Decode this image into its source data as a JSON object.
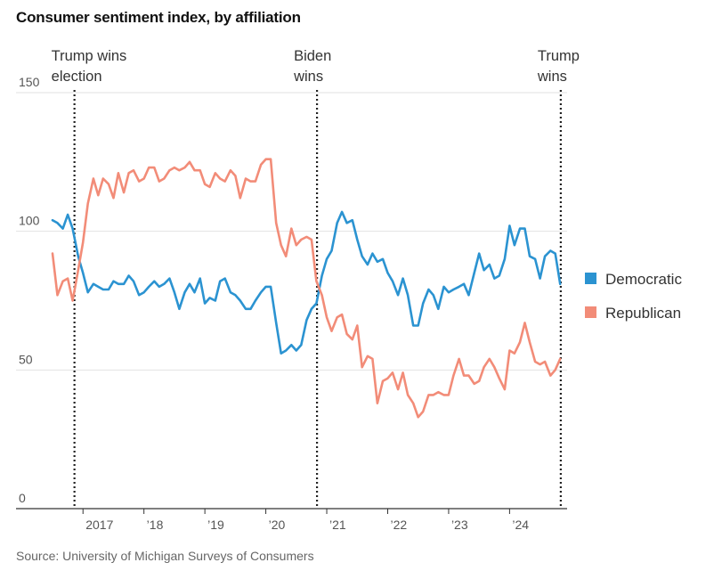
{
  "title": "Consumer sentiment index, by affiliation",
  "source": "Source: University of Michigan Surveys of Consumers",
  "chart_data": {
    "type": "line",
    "title": "Consumer sentiment index, by affiliation",
    "ylim": [
      0,
      150
    ],
    "yticks": [
      0,
      50,
      100,
      150
    ],
    "ytick_labels": [
      "0",
      "50",
      "100",
      "150"
    ],
    "xlim": [
      2016.5,
      2024.9
    ],
    "xticks": [
      2017,
      2018,
      2019,
      2020,
      2021,
      2022,
      2023,
      2024
    ],
    "xtick_labels": [
      "2017",
      "’18",
      "’19",
      "’20",
      "’21",
      "’22",
      "’23",
      "’24"
    ],
    "grid": true,
    "legend_position": "right",
    "events": [
      {
        "x": 2016.86,
        "label_lines": [
          "Trump wins",
          "election"
        ]
      },
      {
        "x": 2020.84,
        "label_lines": [
          "Biden",
          "wins"
        ]
      },
      {
        "x": 2024.84,
        "label_lines": [
          "Trump",
          "wins"
        ]
      }
    ],
    "series": [
      {
        "name": "Democratic",
        "color": "#2b93d1",
        "x": [
          2016.5,
          2016.58,
          2016.67,
          2016.75,
          2016.83,
          2016.92,
          2017.0,
          2017.08,
          2017.17,
          2017.25,
          2017.33,
          2017.42,
          2017.5,
          2017.58,
          2017.67,
          2017.75,
          2017.83,
          2017.92,
          2018.0,
          2018.08,
          2018.17,
          2018.25,
          2018.33,
          2018.42,
          2018.5,
          2018.58,
          2018.67,
          2018.75,
          2018.83,
          2018.92,
          2019.0,
          2019.08,
          2019.17,
          2019.25,
          2019.33,
          2019.42,
          2019.5,
          2019.58,
          2019.67,
          2019.75,
          2019.83,
          2019.92,
          2020.0,
          2020.08,
          2020.17,
          2020.25,
          2020.33,
          2020.42,
          2020.5,
          2020.58,
          2020.67,
          2020.75,
          2020.83,
          2020.92,
          2021.0,
          2021.08,
          2021.17,
          2021.25,
          2021.33,
          2021.42,
          2021.5,
          2021.58,
          2021.67,
          2021.75,
          2021.83,
          2021.92,
          2022.0,
          2022.08,
          2022.17,
          2022.25,
          2022.33,
          2022.42,
          2022.5,
          2022.58,
          2022.67,
          2022.75,
          2022.83,
          2022.92,
          2023.0,
          2023.08,
          2023.17,
          2023.25,
          2023.33,
          2023.42,
          2023.5,
          2023.58,
          2023.67,
          2023.75,
          2023.83,
          2023.92,
          2024.0,
          2024.08,
          2024.17,
          2024.25,
          2024.33,
          2024.42,
          2024.5,
          2024.58,
          2024.67,
          2024.75,
          2024.83
        ],
        "y": [
          104,
          103,
          101,
          106,
          101,
          91,
          85,
          78,
          81,
          80,
          79,
          79,
          82,
          81,
          81,
          84,
          82,
          77,
          78,
          80,
          82,
          80,
          81,
          83,
          78,
          72,
          78,
          81,
          78,
          83,
          74,
          76,
          75,
          82,
          83,
          78,
          77,
          75,
          72,
          72,
          75,
          78,
          80,
          80,
          67,
          56,
          57,
          59,
          57,
          59,
          68,
          72,
          74,
          84,
          90,
          93,
          103,
          107,
          103,
          104,
          97,
          91,
          88,
          92,
          89,
          90,
          85,
          82,
          77,
          83,
          77,
          66,
          66,
          74,
          79,
          77,
          72,
          80,
          78,
          79,
          80,
          81,
          77,
          85,
          92,
          86,
          88,
          83,
          84,
          90,
          102,
          95,
          101,
          101,
          91,
          90,
          83,
          91,
          93,
          92,
          81
        ]
      },
      {
        "name": "Republican",
        "color": "#f28c78",
        "x": [
          2016.5,
          2016.58,
          2016.67,
          2016.75,
          2016.83,
          2016.92,
          2017.0,
          2017.08,
          2017.17,
          2017.25,
          2017.33,
          2017.42,
          2017.5,
          2017.58,
          2017.67,
          2017.75,
          2017.83,
          2017.92,
          2018.0,
          2018.08,
          2018.17,
          2018.25,
          2018.33,
          2018.42,
          2018.5,
          2018.58,
          2018.67,
          2018.75,
          2018.83,
          2018.92,
          2019.0,
          2019.08,
          2019.17,
          2019.25,
          2019.33,
          2019.42,
          2019.5,
          2019.58,
          2019.67,
          2019.75,
          2019.83,
          2019.92,
          2020.0,
          2020.08,
          2020.17,
          2020.25,
          2020.33,
          2020.42,
          2020.5,
          2020.58,
          2020.67,
          2020.75,
          2020.83,
          2020.92,
          2021.0,
          2021.08,
          2021.17,
          2021.25,
          2021.33,
          2021.42,
          2021.5,
          2021.58,
          2021.67,
          2021.75,
          2021.83,
          2021.92,
          2022.0,
          2022.08,
          2022.17,
          2022.25,
          2022.33,
          2022.42,
          2022.5,
          2022.58,
          2022.67,
          2022.75,
          2022.83,
          2022.92,
          2023.0,
          2023.08,
          2023.17,
          2023.25,
          2023.33,
          2023.42,
          2023.5,
          2023.58,
          2023.67,
          2023.75,
          2023.83,
          2023.92,
          2024.0,
          2024.08,
          2024.17,
          2024.25,
          2024.33,
          2024.42,
          2024.5,
          2024.58,
          2024.67,
          2024.75,
          2024.83
        ],
        "y": [
          92,
          77,
          82,
          83,
          75,
          86,
          96,
          110,
          119,
          113,
          119,
          117,
          112,
          121,
          114,
          121,
          122,
          118,
          119,
          123,
          123,
          118,
          119,
          122,
          123,
          122,
          123,
          125,
          122,
          122,
          117,
          116,
          121,
          119,
          118,
          122,
          120,
          112,
          119,
          118,
          118,
          124,
          126,
          126,
          103,
          95,
          91,
          101,
          95,
          97,
          98,
          97,
          82,
          77,
          69,
          64,
          69,
          70,
          63,
          61,
          66,
          51,
          55,
          54,
          38,
          46,
          47,
          49,
          43,
          49,
          41,
          38,
          33,
          35,
          41,
          41,
          42,
          41,
          41,
          48,
          54,
          48,
          48,
          45,
          46,
          51,
          54,
          51,
          47,
          43,
          57,
          56,
          60,
          67,
          60,
          53,
          52,
          53,
          48,
          50,
          54
        ]
      }
    ]
  }
}
